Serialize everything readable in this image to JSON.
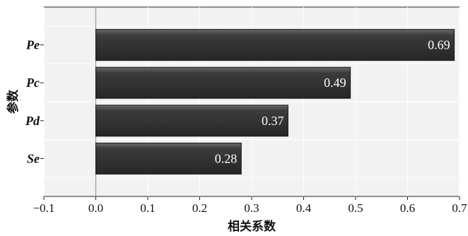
{
  "chart_data": {
    "type": "bar",
    "orientation": "horizontal",
    "categories": [
      "Pe",
      "Pc",
      "Pd",
      "Se"
    ],
    "values": [
      0.69,
      0.49,
      0.37,
      0.28
    ],
    "value_labels": [
      "0.69",
      "0.49",
      "0.37",
      "0.28"
    ],
    "xlabel": "相关系数",
    "ylabel": "参数",
    "xlim": [
      -0.1,
      0.7
    ],
    "xticks": [
      -0.1,
      0,
      0.1,
      0.2,
      0.3,
      0.4,
      0.5,
      0.6,
      0.7
    ],
    "xtick_labels": [
      "−0.1",
      "0.0",
      "0.1",
      "0.2",
      "0.3",
      "0.4",
      "0.5",
      "0.6",
      "0.7"
    ],
    "grid": true,
    "colors": {
      "plot_background": "#f2f2f2",
      "grid": "#ffffff",
      "bar_top": "#6a6a6a",
      "bar_mid": "#3c3c3c",
      "bar_bottom": "#262626",
      "zero_line": "#9a9a9a"
    }
  }
}
